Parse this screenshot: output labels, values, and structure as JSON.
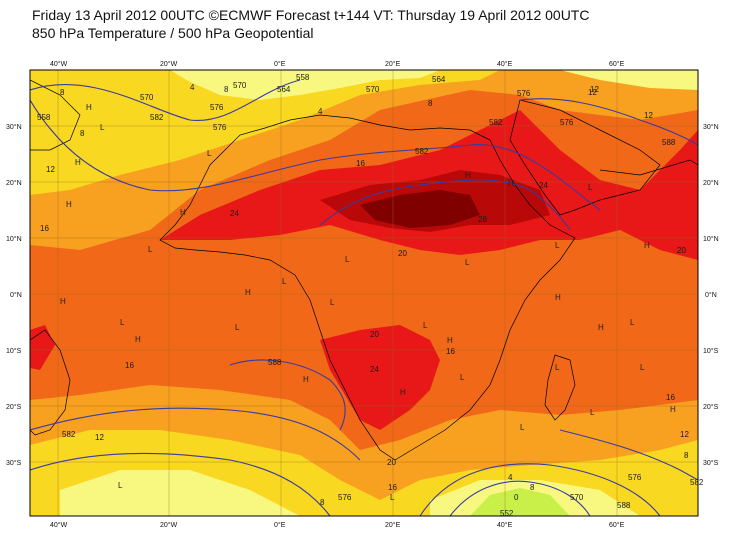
{
  "title": {
    "line1": "Friday 13 April 2012 00UTC ©ECMWF Forecast t+144 VT: Thursday 19 April 2012 00UTC",
    "line2": "850 hPa Temperature / 500 hPa Geopotential"
  },
  "axes": {
    "top_ticks": [
      "40°W",
      "20°W",
      "0°E",
      "20°E",
      "40°E",
      "60°E"
    ],
    "bottom_ticks": [
      "40°W",
      "20°W",
      "0°E",
      "20°E",
      "40°E",
      "60°E"
    ],
    "left_ticks": [
      "30°N",
      "20°N",
      "10°N",
      "0°N",
      "10°S",
      "20°S",
      "30°S"
    ],
    "right_ticks": [
      "30°N",
      "20°N",
      "10°N",
      "0°N",
      "10°S",
      "20°S",
      "30°S"
    ]
  },
  "temperature_labels": [
    "8",
    "4",
    "8",
    "4",
    "8",
    "12",
    "16",
    "12",
    "16",
    "24",
    "28",
    "24",
    "20",
    "20",
    "20",
    "16",
    "24",
    "16",
    "20",
    "16",
    "12",
    "12",
    "16",
    "8",
    "4",
    "12",
    "8",
    "0",
    "12",
    "8",
    "8"
  ],
  "geopotential_labels": [
    "558",
    "582",
    "576",
    "570",
    "564",
    "558",
    "576",
    "582",
    "564",
    "570",
    "576",
    "588",
    "588",
    "582",
    "576",
    "570",
    "588",
    "552",
    "576",
    "582",
    "570",
    "576",
    "582"
  ],
  "pressure_centers": [
    "H",
    "L",
    "H",
    "L",
    "H",
    "H",
    "L",
    "H",
    "L",
    "L",
    "H",
    "L",
    "H",
    "L",
    "L",
    "H",
    "H",
    "L",
    "H",
    "L",
    "L",
    "L",
    "H",
    "H",
    "L",
    "L",
    "L",
    "H",
    "H",
    "L",
    "L",
    "L",
    "H",
    "H",
    "L",
    "L"
  ],
  "colors": {
    "cold": "#f8f880",
    "cool": "#f8d820",
    "mild": "#f8a020",
    "warm": "#f06818",
    "hot": "#e81818",
    "veryhot": "#b80808",
    "extreme": "#800000",
    "green": "#c8f048",
    "contour": "#3a3aa0",
    "coast": "#000000"
  }
}
